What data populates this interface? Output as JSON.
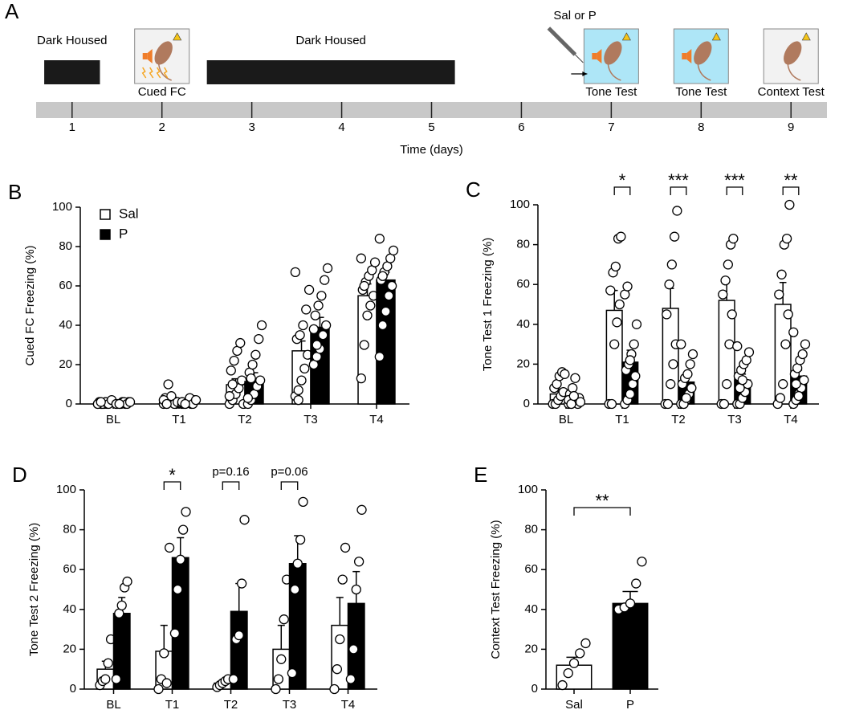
{
  "timeline": {
    "panel": "A",
    "xlabel": "Time (days)",
    "xlim": [
      0.6,
      9.4
    ],
    "xticks": [
      1,
      2,
      3,
      4,
      5,
      6,
      7,
      8,
      9
    ],
    "dark_periods": [
      {
        "label": "Dark Housed",
        "start": 0.69,
        "end": 1.31
      },
      {
        "label": "Dark Housed",
        "start": 2.5,
        "end": 5.26
      }
    ],
    "events": [
      {
        "label": "Cued FC",
        "day": 2,
        "color": "#f2f2f2",
        "tone": true,
        "shock": true
      },
      {
        "label": "Tone Test",
        "day": 7,
        "color": "#aee6f7",
        "tone": true,
        "injection": "Sal or P"
      },
      {
        "label": "Tone Test",
        "day": 8,
        "color": "#aee6f7",
        "tone": true
      },
      {
        "label": "Context Test",
        "day": 9,
        "color": "#f2f2f2",
        "tone": false
      }
    ]
  },
  "chart_data": [
    {
      "type": "bar",
      "panel": "B",
      "ylabel": "Cued FC Freezing (%)",
      "categories": [
        "BL",
        "T1",
        "T2",
        "T3",
        "T4"
      ],
      "ylim": [
        0,
        100
      ],
      "yticks": [
        0,
        20,
        40,
        60,
        80,
        100
      ],
      "legend": "upper left",
      "series": [
        {
          "name": "Sal",
          "color": "#ffffff",
          "values": [
            0.5,
            1.5,
            9.8,
            27,
            55
          ],
          "errors": [
            0.2,
            0.8,
            3,
            5,
            6
          ],
          "points": [
            [
              0,
              0,
              0,
              0,
              1,
              1,
              0,
              1,
              0,
              2,
              0,
              1
            ],
            [
              0,
              0,
              1,
              2,
              0,
              3,
              10,
              4,
              0,
              1,
              2,
              0
            ],
            [
              0,
              2,
              5,
              8,
              12,
              17,
              22,
              27,
              31,
              0,
              4,
              10
            ],
            [
              4,
              7,
              12,
              18,
              25,
              33,
              35,
              40,
              48,
              58,
              67,
              2
            ],
            [
              13,
              30,
              45,
              50,
              55,
              58,
              62,
              65,
              68,
              72,
              74,
              60
            ]
          ]
        },
        {
          "name": "P",
          "color": "#000000",
          "values": [
            0.5,
            1,
            11.4,
            39,
            63
          ],
          "errors": [
            0.2,
            0.5,
            4.5,
            5,
            4
          ],
          "points": [
            [
              0,
              0,
              1,
              0,
              1,
              0,
              0,
              1,
              0,
              1,
              0,
              0
            ],
            [
              0,
              0,
              1,
              0,
              2,
              0,
              1,
              3,
              0,
              2,
              1,
              0
            ],
            [
              0,
              2,
              5,
              9,
              12,
              16,
              20,
              25,
              33,
              40,
              3,
              13
            ],
            [
              20,
              24,
              28,
              35,
              40,
              45,
              50,
              55,
              63,
              69,
              38,
              30
            ],
            [
              24,
              40,
              47,
              55,
              60,
              63,
              67,
              70,
              74,
              78,
              84,
              65
            ]
          ]
        }
      ]
    },
    {
      "type": "bar",
      "panel": "C",
      "ylabel": "Tone Test 1 Freezing (%)",
      "categories": [
        "BL",
        "T1",
        "T2",
        "T3",
        "T4"
      ],
      "ylim": [
        0,
        100
      ],
      "yticks": [
        0,
        20,
        40,
        60,
        80,
        100
      ],
      "significance": [
        null,
        "*",
        "***",
        "***",
        "**"
      ],
      "series": [
        {
          "color": "#ffffff",
          "values": [
            5,
            47,
            48,
            52,
            50
          ],
          "errors": [
            2.5,
            10,
            10,
            10,
            11
          ],
          "points": [
            [
              0,
              0,
              2,
              4,
              6,
              8,
              10,
              14,
              16,
              15
            ],
            [
              0,
              0,
              30,
              41,
              50,
              57,
              66,
              69,
              83,
              84
            ],
            [
              0,
              0,
              10,
              20,
              30,
              45,
              60,
              70,
              84,
              97
            ],
            [
              0,
              0,
              10,
              30,
              45,
              55,
              62,
              70,
              80,
              83
            ],
            [
              0,
              3,
              10,
              30,
              45,
              55,
              65,
              80,
              83,
              100
            ]
          ]
        },
        {
          "color": "#000000",
          "values": [
            3,
            21,
            11,
            12,
            14
          ],
          "errors": [
            1.5,
            6,
            3,
            3,
            3
          ],
          "points": [
            [
              0,
              0,
              1,
              2,
              3,
              5,
              8,
              13,
              0,
              1,
              2,
              0,
              4
            ],
            [
              0,
              2,
              5,
              10,
              14,
              17,
              20,
              25,
              30,
              40,
              55,
              59,
              22
            ],
            [
              0,
              0,
              2,
              5,
              8,
              10,
              13,
              15,
              20,
              25,
              30,
              0,
              3
            ],
            [
              0,
              0,
              3,
              6,
              10,
              14,
              17,
              20,
              22,
              26,
              29,
              8,
              12
            ],
            [
              0,
              2,
              5,
              8,
              12,
              15,
              18,
              22,
              25,
              30,
              36,
              10,
              4
            ]
          ]
        }
      ]
    },
    {
      "type": "bar",
      "panel": "D",
      "ylabel": "Tone Test 2 Freezing (%)",
      "categories": [
        "BL",
        "T1",
        "T2",
        "T3",
        "T4"
      ],
      "ylim": [
        0,
        100
      ],
      "yticks": [
        0,
        20,
        40,
        60,
        80,
        100
      ],
      "significance": [
        null,
        "*",
        "p=0.16",
        "p=0.06",
        null
      ],
      "series": [
        {
          "color": "#ffffff",
          "values": [
            10,
            19,
            3,
            20,
            32
          ],
          "errors": [
            4,
            13,
            1.5,
            12,
            14
          ],
          "points": [
            [
              2,
              4,
              5,
              13,
              25
            ],
            [
              0,
              5,
              18,
              3,
              71
            ],
            [
              1,
              2,
              3,
              4,
              5
            ],
            [
              0,
              5,
              15,
              35,
              55
            ],
            [
              0,
              10,
              25,
              55,
              71
            ]
          ]
        },
        {
          "color": "#000000",
          "values": [
            38,
            66,
            39,
            63,
            43
          ],
          "errors": [
            8,
            10,
            14,
            14,
            16
          ],
          "points": [
            [
              5,
              38,
              42,
              51,
              54
            ],
            [
              28,
              50,
              65,
              80,
              89
            ],
            [
              5,
              25,
              27,
              53,
              85
            ],
            [
              8,
              50,
              63,
              75,
              94
            ],
            [
              5,
              20,
              50,
              64,
              90
            ]
          ]
        }
      ]
    },
    {
      "type": "bar",
      "panel": "E",
      "ylabel": "Context Test Freezing (%)",
      "categories": [
        "Sal",
        "P"
      ],
      "ylim": [
        0,
        100
      ],
      "yticks": [
        0,
        20,
        40,
        60,
        80,
        100
      ],
      "significance": "**",
      "series": [
        {
          "colors": [
            "#ffffff",
            "#000000"
          ],
          "values": [
            12,
            43
          ],
          "errors": [
            4,
            6
          ],
          "points": [
            [
              2,
              8,
              13,
              18,
              23
            ],
            [
              40,
              41,
              43,
              53,
              64
            ]
          ]
        }
      ]
    }
  ]
}
